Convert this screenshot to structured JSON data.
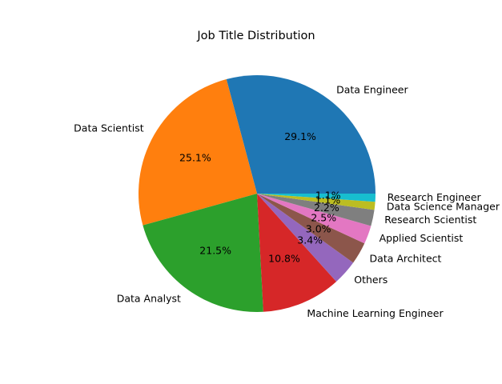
{
  "chart_data": {
    "type": "pie",
    "title": "Job Title Distribution",
    "slices": [
      {
        "label": "Data Engineer",
        "value": 29.1,
        "pct_label": "29.1%",
        "color": "#1f77b4"
      },
      {
        "label": "Data Scientist",
        "value": 25.1,
        "pct_label": "25.1%",
        "color": "#ff7f0e"
      },
      {
        "label": "Data Analyst",
        "value": 21.5,
        "pct_label": "21.5%",
        "color": "#2ca02c"
      },
      {
        "label": "Machine Learning Engineer",
        "value": 10.8,
        "pct_label": "10.8%",
        "color": "#d62728"
      },
      {
        "label": "Others",
        "value": 3.4,
        "pct_label": "3.4%",
        "color": "#9467bd"
      },
      {
        "label": "Data Architect",
        "value": 3.0,
        "pct_label": "3.0%",
        "color": "#8c564b"
      },
      {
        "label": "Applied Scientist",
        "value": 2.5,
        "pct_label": "2.5%",
        "color": "#e377c2"
      },
      {
        "label": "Research Scientist",
        "value": 2.2,
        "pct_label": "2.2%",
        "color": "#7f7f7f"
      },
      {
        "label": "Data Science Manager",
        "value": 1.1,
        "pct_label": "1.1%",
        "color": "#bcbd22"
      },
      {
        "label": "Research Engineer",
        "value": 1.1,
        "pct_label": "1.1%",
        "color": "#17becf"
      }
    ],
    "start_angle_deg": 0,
    "direction": "counterclockwise"
  }
}
